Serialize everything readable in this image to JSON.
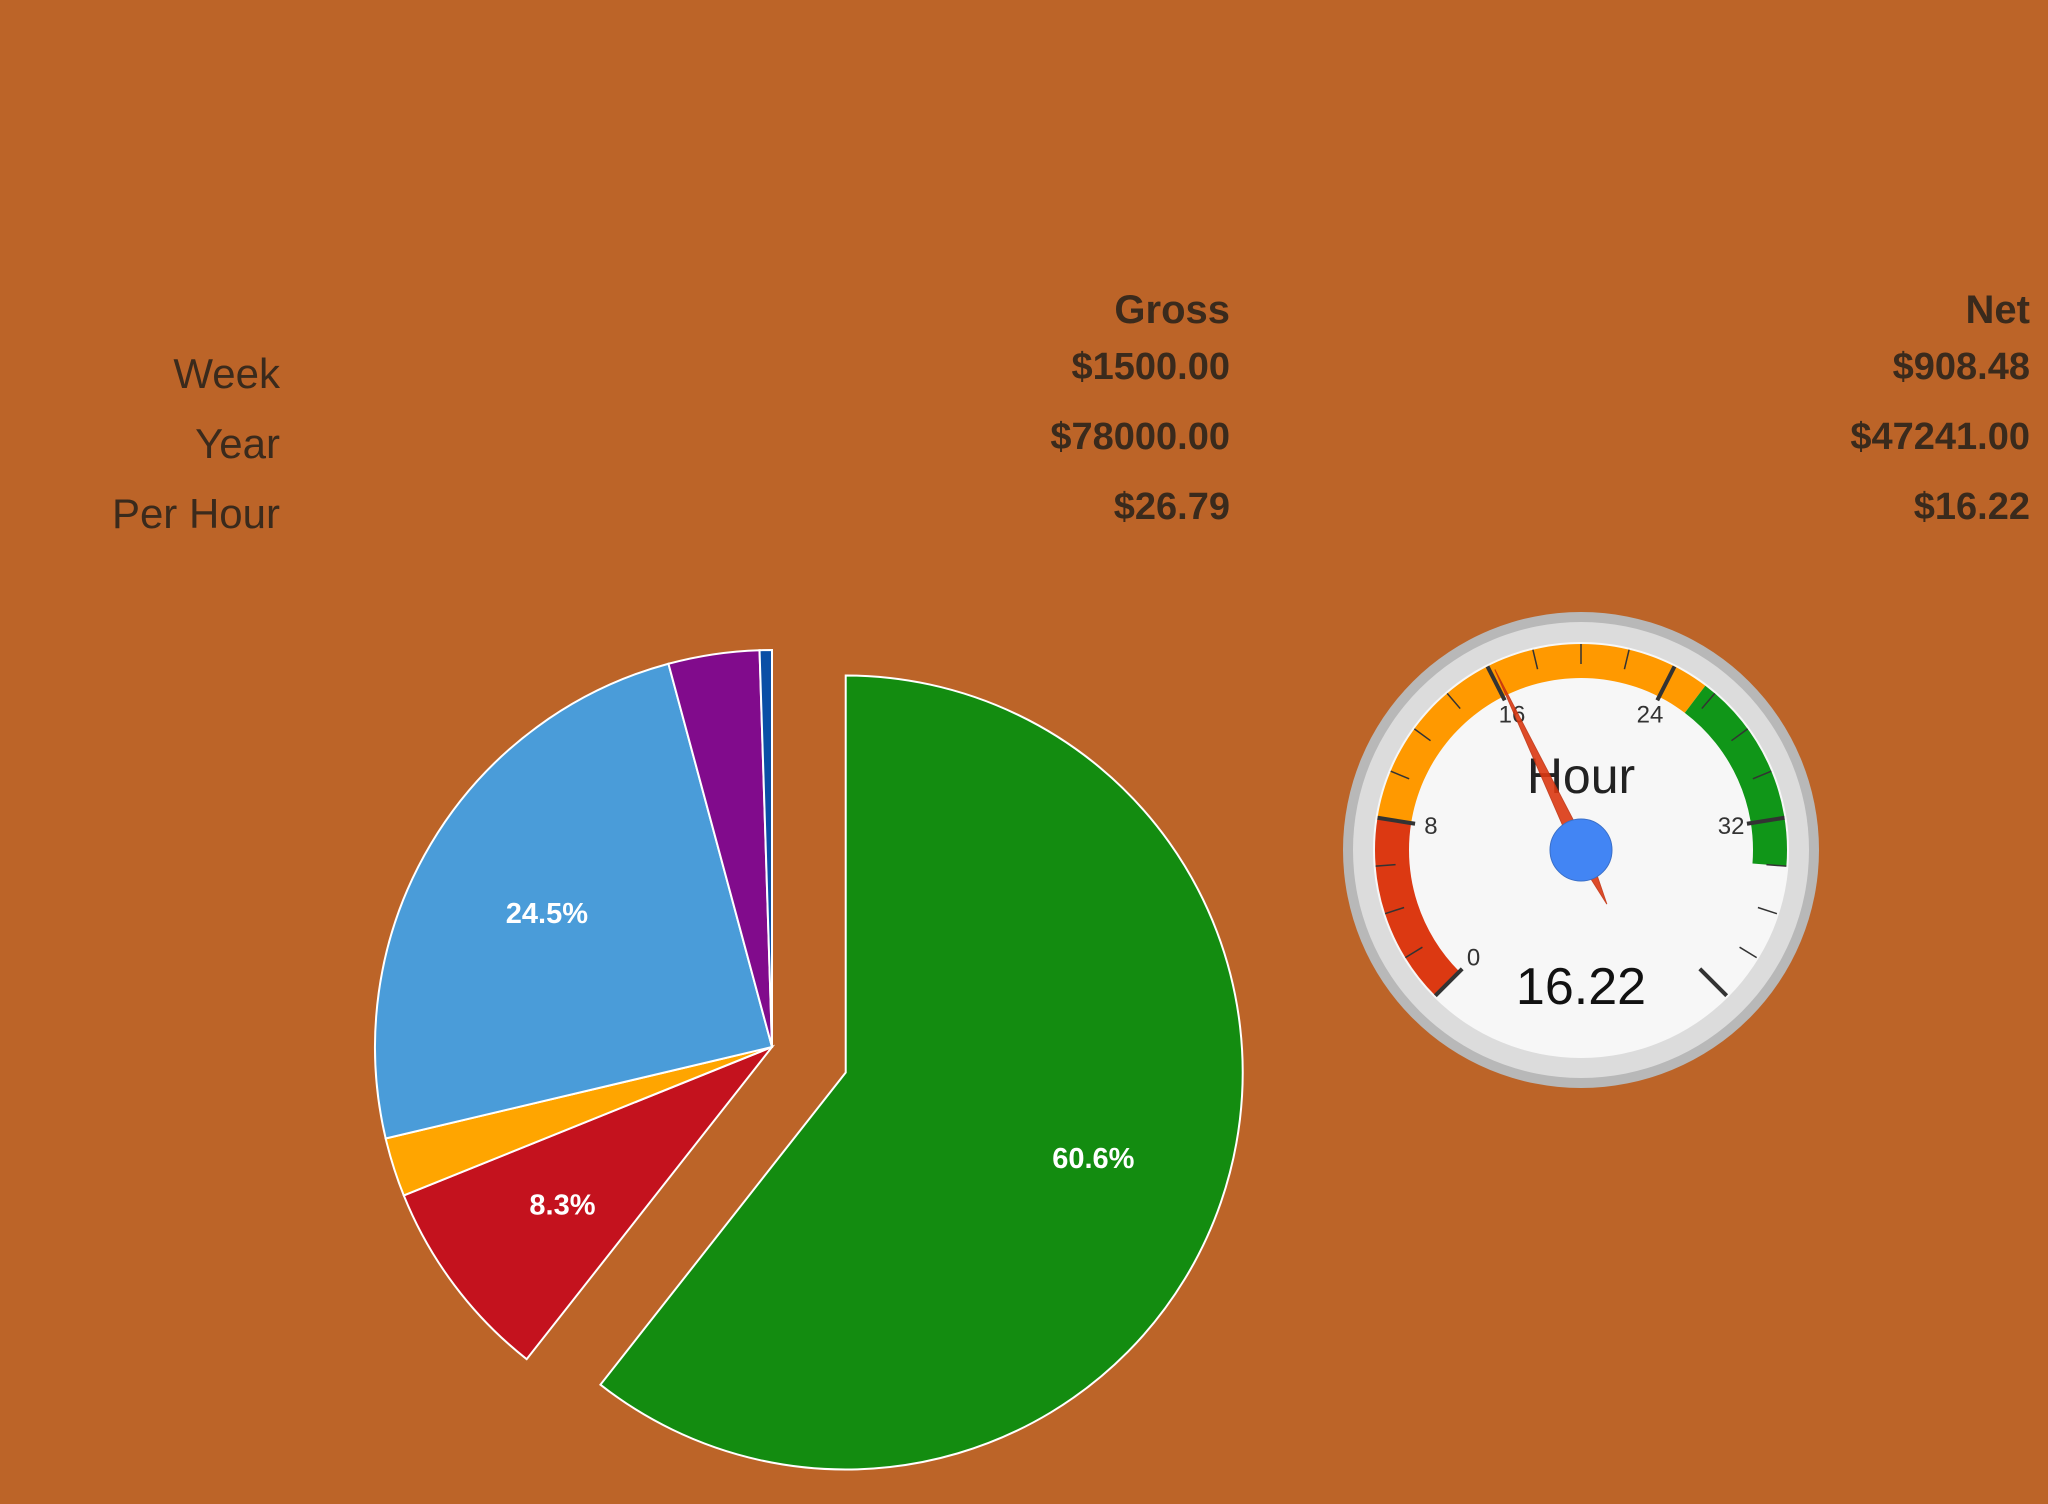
{
  "salary_table": {
    "headers": {
      "gross": "Gross",
      "net": "Net"
    },
    "rows": [
      {
        "label": "Week",
        "gross": "$1500.00",
        "net": "$908.48"
      },
      {
        "label": "Year",
        "gross": "$78000.00",
        "net": "$47241.00"
      },
      {
        "label": "Per Hour",
        "gross": "$26.79",
        "net": "$16.22"
      }
    ]
  },
  "chart_data": [
    {
      "type": "pie",
      "slices": [
        {
          "label": "60.6%",
          "value": 60.6,
          "color": "#138c10",
          "exploded": true
        },
        {
          "label": "8.3%",
          "value": 8.3,
          "color": "#c4121e"
        },
        {
          "label": "",
          "value": 2.4,
          "color": "#ffa500"
        },
        {
          "label": "24.5%",
          "value": 24.5,
          "color": "#4a9cd9"
        },
        {
          "label": "",
          "value": 3.7,
          "color": "#810b8c"
        },
        {
          "label": "",
          "value": 0.5,
          "color": "#0a4fa6"
        }
      ]
    },
    {
      "type": "gauge",
      "label": "Hour",
      "value": 16.22,
      "value_text": "16.22",
      "min": 0,
      "max": 40,
      "major_ticks": [
        "0",
        "8",
        "16",
        "24",
        "32"
      ],
      "bands": [
        {
          "from": 0,
          "to": 8,
          "color": "#dc3912"
        },
        {
          "from": 8,
          "to": 25.5,
          "color": "#ff9900"
        },
        {
          "from": 25.5,
          "to": 34,
          "color": "#109618"
        }
      ]
    }
  ]
}
